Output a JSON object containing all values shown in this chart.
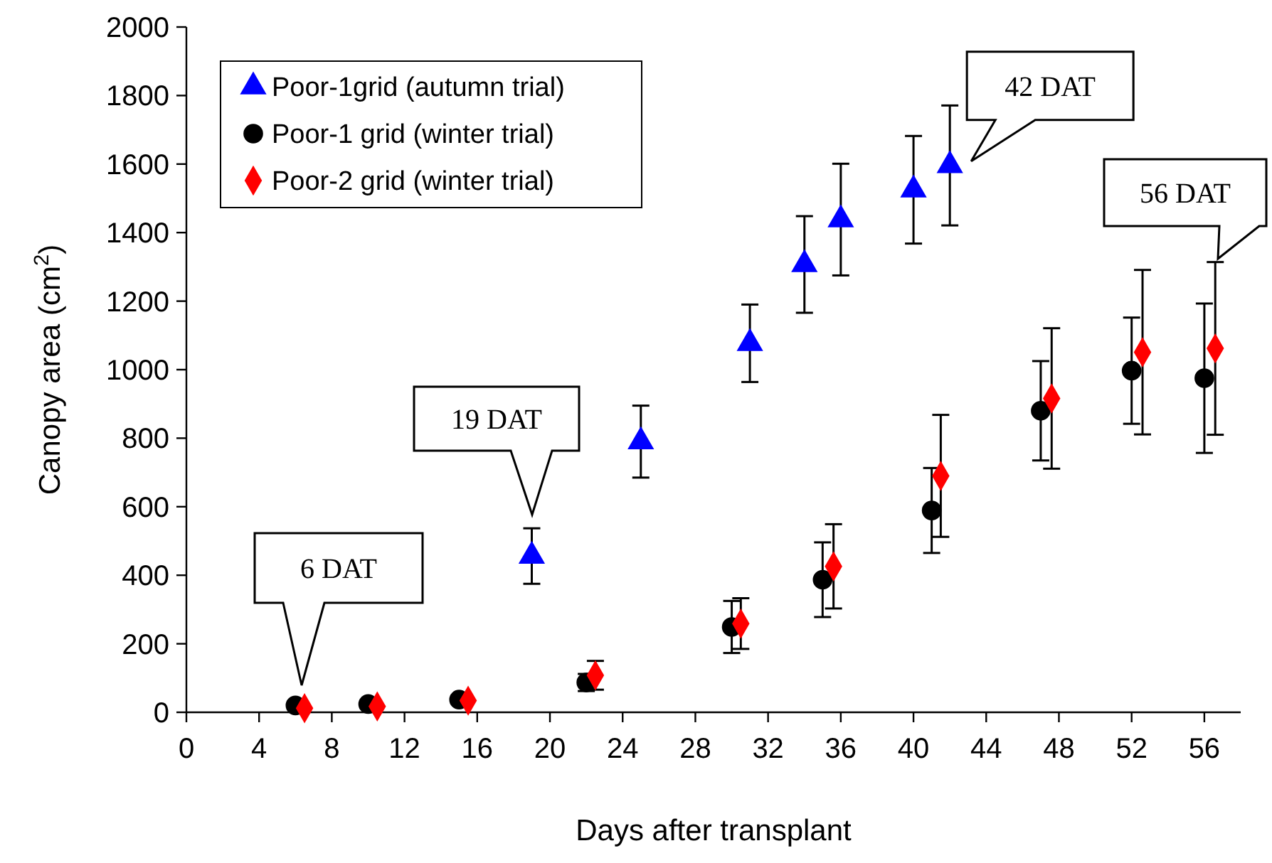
{
  "chart_data": {
    "type": "scatter",
    "xlabel": "Days after transplant",
    "ylabel": "Canopy area (cm$^{2}$)",
    "xlim": [
      0,
      58
    ],
    "xticks": [
      0,
      4,
      8,
      12,
      16,
      20,
      24,
      28,
      32,
      36,
      40,
      44,
      48,
      52,
      56
    ],
    "ylim": [
      0,
      2000
    ],
    "yticks": [
      0,
      200,
      400,
      600,
      800,
      1000,
      1200,
      1400,
      1600,
      1800,
      2000
    ],
    "grid": false,
    "legend": "top left",
    "series": [
      {
        "name": "Poor-1grid (autumn trial)",
        "color": "#0000ff",
        "marker": "triangle",
        "x": [
          19,
          25,
          31,
          34,
          36,
          40,
          42
        ],
        "values": [
          456,
          790,
          1077,
          1307,
          1438,
          1525,
          1596
        ],
        "errors": [
          81,
          105,
          113,
          141,
          163,
          157,
          175
        ]
      },
      {
        "name": "Poor-1 grid (winter trial)",
        "color": "#000000",
        "marker": "circle",
        "x": [
          6,
          10,
          15,
          22,
          30,
          35,
          41,
          47,
          52,
          56
        ],
        "values": [
          20,
          24,
          37,
          87,
          249,
          387,
          589,
          880,
          997,
          975
        ],
        "errors": [
          null,
          null,
          null,
          25,
          76,
          109,
          124,
          145,
          155,
          218
        ]
      },
      {
        "name": "Poor-2 grid (winter trial)",
        "color": "#ff0000",
        "marker": "diamond",
        "x": [
          6.5,
          10.5,
          15.5,
          22.5,
          30.5,
          35.6,
          41.5,
          47.6,
          52.6,
          56.6
        ],
        "values": [
          12,
          17,
          34,
          108,
          259,
          426,
          690,
          916,
          1051,
          1062
        ],
        "errors": [
          null,
          null,
          null,
          42,
          74,
          123,
          178,
          205,
          240,
          252
        ]
      }
    ],
    "annotations": [
      "6 DAT",
      "19 DAT",
      {
        "text": "42 DAT",
        "x": 42,
        "y": 1596
      },
      "56 DAT"
    ]
  }
}
